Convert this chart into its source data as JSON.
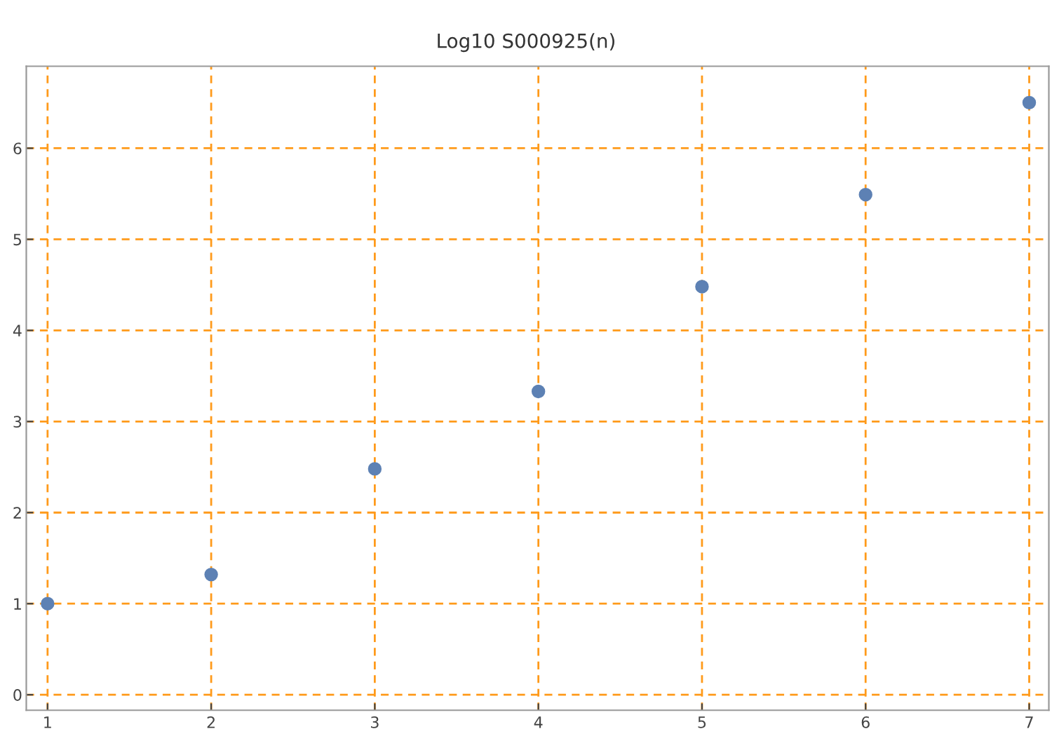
{
  "chart_data": {
    "type": "scatter",
    "title": "Log10 S000925(n)",
    "x": [
      1,
      2,
      3,
      4,
      5,
      6,
      7
    ],
    "series": [
      {
        "color": "#5d81b4",
        "values": [
          1.0,
          1.32,
          2.48,
          3.33,
          4.48,
          5.49,
          6.5
        ]
      }
    ],
    "xlim": [
      0.87,
      7.12
    ],
    "ylim": [
      -0.17,
      6.9
    ],
    "xticks": [
      1,
      2,
      3,
      4,
      5,
      6,
      7
    ],
    "yticks": [
      0,
      1,
      2,
      3,
      4,
      5,
      6
    ],
    "grid": true,
    "marker": "circle",
    "legend": false
  }
}
